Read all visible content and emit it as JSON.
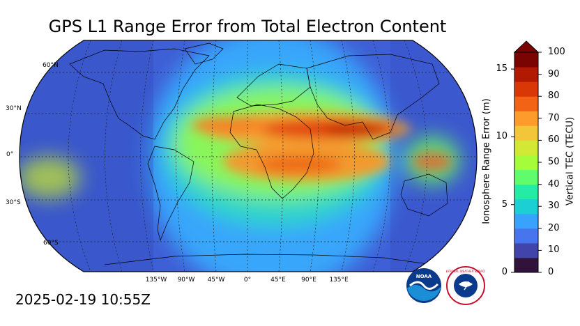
{
  "title": "GPS L1 Range Error from Total Electron Content",
  "timestamp": "2025-02-19 10:55Z",
  "map": {
    "projection": "Robinson",
    "gridlines": "dashed",
    "lat_labels": [
      "60°N",
      "30°N",
      "0°",
      "30°S",
      "60°S"
    ],
    "lon_labels": [
      "135°W",
      "90°W",
      "45°W",
      "0°",
      "45°E",
      "90°E",
      "135°E"
    ],
    "features": [
      "coastlines",
      "country borders"
    ],
    "night_side": "dimmed blue (west Americas / east Asia-Pacific)",
    "tec_peak_region": "equatorial anomaly band over Africa, Middle East and Asia"
  },
  "colorbar": {
    "left_axis_title": "Ionosphere Range Error (m)",
    "left_ticks": [
      "0",
      "5",
      "10",
      "15"
    ],
    "right_axis_title": "Vertical TEC (TECU)",
    "right_ticks": [
      "0",
      "10",
      "20",
      "30",
      "40",
      "50",
      "60",
      "70",
      "80",
      "90",
      "100"
    ],
    "extend": "max",
    "colors": [
      "#30123b",
      "#4145ab",
      "#4675ed",
      "#39a2fc",
      "#1bcfd4",
      "#24eca6",
      "#61fc6c",
      "#a4fc3b",
      "#d1e834",
      "#f3c63a",
      "#fe9b2d",
      "#f36315",
      "#d93806",
      "#b11901",
      "#7a0402"
    ]
  },
  "logos": {
    "noaa": "NOAA",
    "nws": "NATIONAL WEATHER SERVICE"
  }
}
